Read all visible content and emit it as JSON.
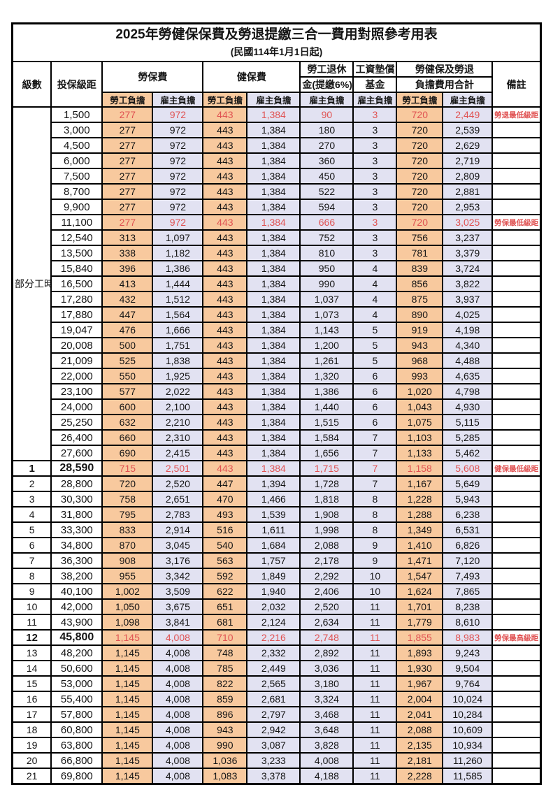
{
  "title": "2025年勞健保保費及勞退提繳三合一費用對照參考用表",
  "subtitle": "(民國114年1月1日起)",
  "colors": {
    "employee_fill": "#f8c99e",
    "employer_fill": "#e2e2f2",
    "highlight_red": "#e05252",
    "border": "#000000",
    "background": "#ffffff"
  },
  "header": {
    "level": "級數",
    "bracket": "投保級距",
    "labor_insurance": "勞保費",
    "health_insurance": "健保費",
    "pension_line1": "勞工退休",
    "pension_line2": "金(提繳6%)",
    "wage_fund_line1": "工資墊償",
    "wage_fund_line2": "基金",
    "total_line1": "勞健保及勞退",
    "total_line2": "負擔費用合計",
    "remark": "備註",
    "employee_share": "勞工負擔",
    "employer_share": "雇主負擔"
  },
  "part_time": {
    "label": "部分工時",
    "rowspan": 23
  },
  "rows": [
    {
      "lv": "",
      "br": "1,500",
      "c": [
        "277",
        "972",
        "443",
        "1,384",
        "90",
        "3",
        "720",
        "2,449"
      ],
      "rm": "勞退最低級距",
      "hl": true,
      "bd": false
    },
    {
      "lv": "",
      "br": "3,000",
      "c": [
        "277",
        "972",
        "443",
        "1,384",
        "180",
        "3",
        "720",
        "2,539"
      ],
      "rm": "",
      "hl": false,
      "bd": false
    },
    {
      "lv": "",
      "br": "4,500",
      "c": [
        "277",
        "972",
        "443",
        "1,384",
        "270",
        "3",
        "720",
        "2,629"
      ],
      "rm": "",
      "hl": false,
      "bd": false
    },
    {
      "lv": "",
      "br": "6,000",
      "c": [
        "277",
        "972",
        "443",
        "1,384",
        "360",
        "3",
        "720",
        "2,719"
      ],
      "rm": "",
      "hl": false,
      "bd": false
    },
    {
      "lv": "",
      "br": "7,500",
      "c": [
        "277",
        "972",
        "443",
        "1,384",
        "450",
        "3",
        "720",
        "2,809"
      ],
      "rm": "",
      "hl": false,
      "bd": false
    },
    {
      "lv": "",
      "br": "8,700",
      "c": [
        "277",
        "972",
        "443",
        "1,384",
        "522",
        "3",
        "720",
        "2,881"
      ],
      "rm": "",
      "hl": false,
      "bd": false
    },
    {
      "lv": "",
      "br": "9,900",
      "c": [
        "277",
        "972",
        "443",
        "1,384",
        "594",
        "3",
        "720",
        "2,953"
      ],
      "rm": "",
      "hl": false,
      "bd": false
    },
    {
      "lv": "",
      "br": "11,100",
      "c": [
        "277",
        "972",
        "443",
        "1,384",
        "666",
        "3",
        "720",
        "3,025"
      ],
      "rm": "勞保最低級距",
      "hl": true,
      "bd": false
    },
    {
      "lv": "",
      "br": "12,540",
      "c": [
        "313",
        "1,097",
        "443",
        "1,384",
        "752",
        "3",
        "756",
        "3,237"
      ],
      "rm": "",
      "hl": false,
      "bd": false
    },
    {
      "lv": "",
      "br": "13,500",
      "c": [
        "338",
        "1,182",
        "443",
        "1,384",
        "810",
        "3",
        "781",
        "3,379"
      ],
      "rm": "",
      "hl": false,
      "bd": false
    },
    {
      "lv": "",
      "br": "15,840",
      "c": [
        "396",
        "1,386",
        "443",
        "1,384",
        "950",
        "4",
        "839",
        "3,724"
      ],
      "rm": "",
      "hl": false,
      "bd": false
    },
    {
      "lv": "",
      "br": "16,500",
      "c": [
        "413",
        "1,444",
        "443",
        "1,384",
        "990",
        "4",
        "856",
        "3,822"
      ],
      "rm": "",
      "hl": false,
      "bd": false
    },
    {
      "lv": "",
      "br": "17,280",
      "c": [
        "432",
        "1,512",
        "443",
        "1,384",
        "1,037",
        "4",
        "875",
        "3,937"
      ],
      "rm": "",
      "hl": false,
      "bd": false
    },
    {
      "lv": "",
      "br": "17,880",
      "c": [
        "447",
        "1,564",
        "443",
        "1,384",
        "1,073",
        "4",
        "890",
        "4,025"
      ],
      "rm": "",
      "hl": false,
      "bd": false
    },
    {
      "lv": "",
      "br": "19,047",
      "c": [
        "476",
        "1,666",
        "443",
        "1,384",
        "1,143",
        "5",
        "919",
        "4,198"
      ],
      "rm": "",
      "hl": false,
      "bd": false
    },
    {
      "lv": "",
      "br": "20,008",
      "c": [
        "500",
        "1,751",
        "443",
        "1,384",
        "1,200",
        "5",
        "943",
        "4,340"
      ],
      "rm": "",
      "hl": false,
      "bd": false
    },
    {
      "lv": "",
      "br": "21,009",
      "c": [
        "525",
        "1,838",
        "443",
        "1,384",
        "1,261",
        "5",
        "968",
        "4,488"
      ],
      "rm": "",
      "hl": false,
      "bd": false
    },
    {
      "lv": "",
      "br": "22,000",
      "c": [
        "550",
        "1,925",
        "443",
        "1,384",
        "1,320",
        "6",
        "993",
        "4,635"
      ],
      "rm": "",
      "hl": false,
      "bd": false
    },
    {
      "lv": "",
      "br": "23,100",
      "c": [
        "577",
        "2,022",
        "443",
        "1,384",
        "1,386",
        "6",
        "1,020",
        "4,798"
      ],
      "rm": "",
      "hl": false,
      "bd": false
    },
    {
      "lv": "",
      "br": "24,000",
      "c": [
        "600",
        "2,100",
        "443",
        "1,384",
        "1,440",
        "6",
        "1,043",
        "4,930"
      ],
      "rm": "",
      "hl": false,
      "bd": false
    },
    {
      "lv": "",
      "br": "25,250",
      "c": [
        "632",
        "2,210",
        "443",
        "1,384",
        "1,515",
        "6",
        "1,075",
        "5,115"
      ],
      "rm": "",
      "hl": false,
      "bd": false
    },
    {
      "lv": "",
      "br": "26,400",
      "c": [
        "660",
        "2,310",
        "443",
        "1,384",
        "1,584",
        "7",
        "1,103",
        "5,285"
      ],
      "rm": "",
      "hl": false,
      "bd": false
    },
    {
      "lv": "",
      "br": "27,600",
      "c": [
        "690",
        "2,415",
        "443",
        "1,384",
        "1,656",
        "7",
        "1,133",
        "5,462"
      ],
      "rm": "",
      "hl": false,
      "bd": false
    },
    {
      "lv": "1",
      "br": "28,590",
      "c": [
        "715",
        "2,501",
        "443",
        "1,384",
        "1,715",
        "7",
        "1,158",
        "5,608"
      ],
      "rm": "健保最低級距",
      "hl": true,
      "bd": true
    },
    {
      "lv": "2",
      "br": "28,800",
      "c": [
        "720",
        "2,520",
        "447",
        "1,394",
        "1,728",
        "7",
        "1,167",
        "5,649"
      ],
      "rm": "",
      "hl": false,
      "bd": false
    },
    {
      "lv": "3",
      "br": "30,300",
      "c": [
        "758",
        "2,651",
        "470",
        "1,466",
        "1,818",
        "8",
        "1,228",
        "5,943"
      ],
      "rm": "",
      "hl": false,
      "bd": false
    },
    {
      "lv": "4",
      "br": "31,800",
      "c": [
        "795",
        "2,783",
        "493",
        "1,539",
        "1,908",
        "8",
        "1,288",
        "6,238"
      ],
      "rm": "",
      "hl": false,
      "bd": false
    },
    {
      "lv": "5",
      "br": "33,300",
      "c": [
        "833",
        "2,914",
        "516",
        "1,611",
        "1,998",
        "8",
        "1,349",
        "6,531"
      ],
      "rm": "",
      "hl": false,
      "bd": false
    },
    {
      "lv": "6",
      "br": "34,800",
      "c": [
        "870",
        "3,045",
        "540",
        "1,684",
        "2,088",
        "9",
        "1,410",
        "6,826"
      ],
      "rm": "",
      "hl": false,
      "bd": false
    },
    {
      "lv": "7",
      "br": "36,300",
      "c": [
        "908",
        "3,176",
        "563",
        "1,757",
        "2,178",
        "9",
        "1,471",
        "7,120"
      ],
      "rm": "",
      "hl": false,
      "bd": false
    },
    {
      "lv": "8",
      "br": "38,200",
      "c": [
        "955",
        "3,342",
        "592",
        "1,849",
        "2,292",
        "10",
        "1,547",
        "7,493"
      ],
      "rm": "",
      "hl": false,
      "bd": false
    },
    {
      "lv": "9",
      "br": "40,100",
      "c": [
        "1,002",
        "3,509",
        "622",
        "1,940",
        "2,406",
        "10",
        "1,624",
        "7,865"
      ],
      "rm": "",
      "hl": false,
      "bd": false
    },
    {
      "lv": "10",
      "br": "42,000",
      "c": [
        "1,050",
        "3,675",
        "651",
        "2,032",
        "2,520",
        "11",
        "1,701",
        "8,238"
      ],
      "rm": "",
      "hl": false,
      "bd": false
    },
    {
      "lv": "11",
      "br": "43,900",
      "c": [
        "1,098",
        "3,841",
        "681",
        "2,124",
        "2,634",
        "11",
        "1,779",
        "8,610"
      ],
      "rm": "",
      "hl": false,
      "bd": false
    },
    {
      "lv": "12",
      "br": "45,800",
      "c": [
        "1,145",
        "4,008",
        "710",
        "2,216",
        "2,748",
        "11",
        "1,855",
        "8,983"
      ],
      "rm": "勞保最高級距",
      "hl": true,
      "bd": true
    },
    {
      "lv": "13",
      "br": "48,200",
      "c": [
        "1,145",
        "4,008",
        "748",
        "2,332",
        "2,892",
        "11",
        "1,893",
        "9,243"
      ],
      "rm": "",
      "hl": false,
      "bd": false
    },
    {
      "lv": "14",
      "br": "50,600",
      "c": [
        "1,145",
        "4,008",
        "785",
        "2,449",
        "3,036",
        "11",
        "1,930",
        "9,504"
      ],
      "rm": "",
      "hl": false,
      "bd": false
    },
    {
      "lv": "15",
      "br": "53,000",
      "c": [
        "1,145",
        "4,008",
        "822",
        "2,565",
        "3,180",
        "11",
        "1,967",
        "9,764"
      ],
      "rm": "",
      "hl": false,
      "bd": false
    },
    {
      "lv": "16",
      "br": "55,400",
      "c": [
        "1,145",
        "4,008",
        "859",
        "2,681",
        "3,324",
        "11",
        "2,004",
        "10,024"
      ],
      "rm": "",
      "hl": false,
      "bd": false
    },
    {
      "lv": "17",
      "br": "57,800",
      "c": [
        "1,145",
        "4,008",
        "896",
        "2,797",
        "3,468",
        "11",
        "2,041",
        "10,284"
      ],
      "rm": "",
      "hl": false,
      "bd": false
    },
    {
      "lv": "18",
      "br": "60,800",
      "c": [
        "1,145",
        "4,008",
        "943",
        "2,942",
        "3,648",
        "11",
        "2,088",
        "10,609"
      ],
      "rm": "",
      "hl": false,
      "bd": false
    },
    {
      "lv": "19",
      "br": "63,800",
      "c": [
        "1,145",
        "4,008",
        "990",
        "3,087",
        "3,828",
        "11",
        "2,135",
        "10,934"
      ],
      "rm": "",
      "hl": false,
      "bd": false
    },
    {
      "lv": "20",
      "br": "66,800",
      "c": [
        "1,145",
        "4,008",
        "1,036",
        "3,233",
        "4,008",
        "11",
        "2,181",
        "11,260"
      ],
      "rm": "",
      "hl": false,
      "bd": false
    },
    {
      "lv": "21",
      "br": "69,800",
      "c": [
        "1,145",
        "4,008",
        "1,083",
        "3,378",
        "4,188",
        "11",
        "2,228",
        "11,585"
      ],
      "rm": "",
      "hl": false,
      "bd": false
    }
  ]
}
